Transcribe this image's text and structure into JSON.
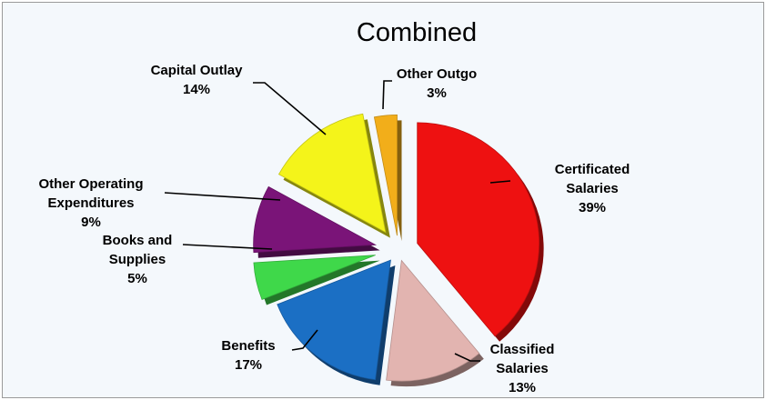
{
  "chart_data": {
    "type": "pie",
    "title": "Combined",
    "slices": [
      {
        "label_lines": [
          "Certificated",
          "Salaries"
        ],
        "value": 39,
        "value_label": "39%",
        "color": "#ee1111"
      },
      {
        "label_lines": [
          "Classified",
          "Salaries"
        ],
        "value": 13,
        "value_label": "13%",
        "color": "#e2b4b0"
      },
      {
        "label_lines": [
          "Benefits"
        ],
        "value": 17,
        "value_label": "17%",
        "color": "#1b6fc4"
      },
      {
        "label_lines": [
          "Books and",
          "Supplies"
        ],
        "value": 5,
        "value_label": "5%",
        "color": "#3fd84a"
      },
      {
        "label_lines": [
          "Other Operating",
          "Expenditures"
        ],
        "value": 9,
        "value_label": "9%",
        "color": "#7a1478"
      },
      {
        "label_lines": [
          "Capital Outlay"
        ],
        "value": 14,
        "value_label": "14%",
        "color": "#f4f41a"
      },
      {
        "label_lines": [
          "Other Outgo"
        ],
        "value": 3,
        "value_label": "3%",
        "color": "#f2ae1a"
      }
    ],
    "legend": "none",
    "exploded": true
  }
}
